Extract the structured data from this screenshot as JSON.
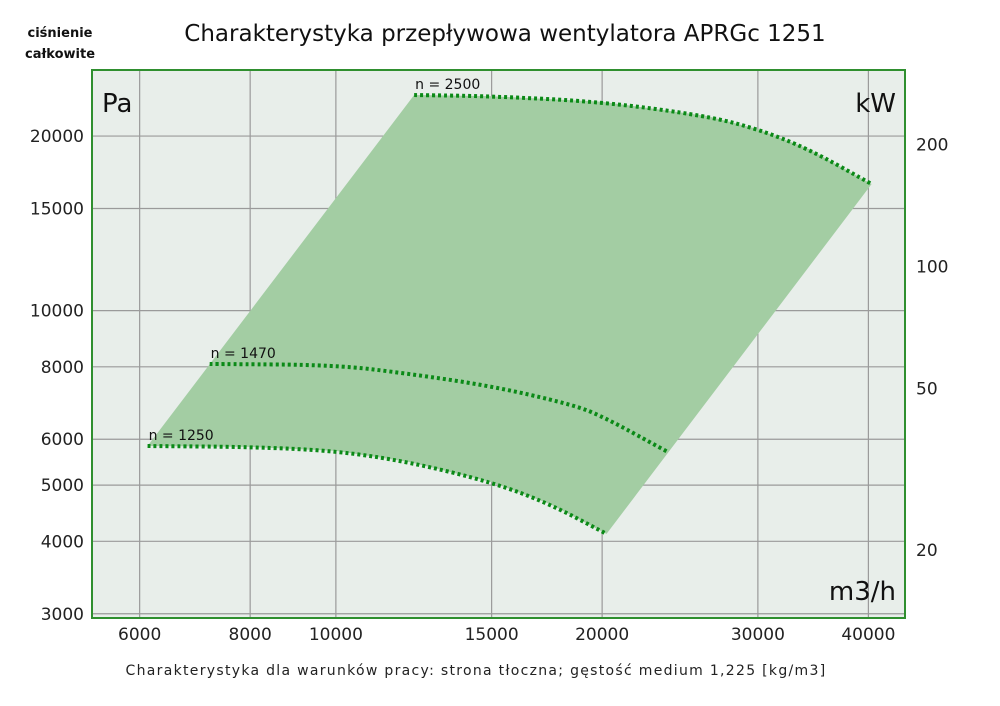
{
  "chart_data": {
    "type": "line",
    "title": "Charakterystyka przepływowa wentylatora APRGc 1251",
    "ylabel": [
      "ciśnienie",
      "całkowite"
    ],
    "y_unit": "Pa",
    "y2_unit": "kW",
    "x_unit": "m3/h",
    "footnote": "Charakterystyka dla warunków pracy: strona tłoczna; gęstość medium 1,225 [kg/m3]",
    "x_scale": "log",
    "y_scale": "log",
    "xlim": [
      5300,
      44000
    ],
    "ylim": [
      2950,
      26000
    ],
    "y2lim": [
      13.6,
      305
    ],
    "x_ticks": [
      6000,
      8000,
      10000,
      15000,
      20000,
      30000,
      40000
    ],
    "x_tick_labels": [
      "6000",
      "8000",
      "10000",
      "15000",
      "20000",
      "30000",
      "40000"
    ],
    "y_ticks": [
      3000,
      4000,
      5000,
      6000,
      8000,
      10000,
      15000,
      20000
    ],
    "y_tick_labels": [
      "3000",
      "4000",
      "5000",
      "6000",
      "8000",
      "10000",
      "15000",
      "20000"
    ],
    "y2_ticks": [
      20,
      50,
      100,
      200
    ],
    "y2_tick_labels": [
      "20",
      "50",
      "100",
      "200"
    ],
    "grid": true,
    "colors": {
      "plot_bg": "#e8eeea",
      "area": "#a3cda3",
      "curve": "#0b8a17",
      "frame": "#2f8f2f",
      "grid": "#9a9a9a"
    },
    "series": [
      {
        "name": "n = 2500",
        "x": [
          12260,
          14900,
          20000,
          26280,
          30000,
          34240,
          40340
        ],
        "y": [
          23540,
          23440,
          22920,
          21660,
          20560,
          19000,
          16530
        ]
      },
      {
        "name": "n = 1470",
        "x": [
          7200,
          10000,
          12110,
          15000,
          18400,
          20000,
          23700
        ],
        "y": [
          8090,
          8060,
          7780,
          7410,
          6900,
          6580,
          5710
        ]
      },
      {
        "name": "n = 1250",
        "x": [
          6125,
          8000,
          10000,
          12110,
          15000,
          17460,
          20230
        ],
        "y": [
          5840,
          5820,
          5730,
          5480,
          5060,
          4640,
          4120
        ]
      }
    ]
  }
}
